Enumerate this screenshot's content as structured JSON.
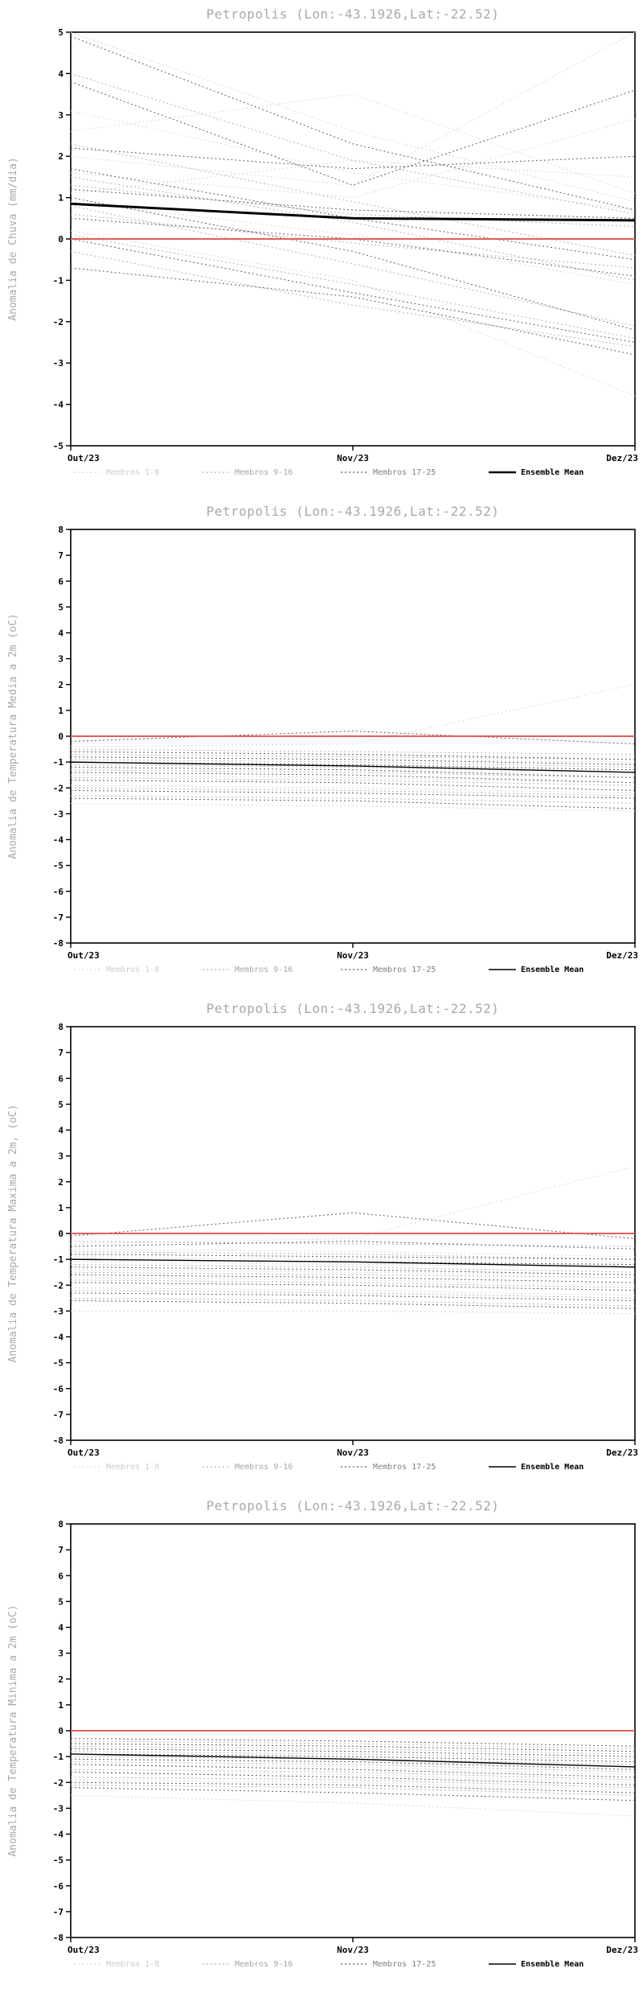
{
  "style": {
    "title_color": "#a9a9a9",
    "axis_label_color": "#a9a9a9",
    "tick_label_color": "#000000",
    "frame_color": "#000000",
    "zero_line_color": "#e0605c",
    "group_colors": [
      "#d8d8d8",
      "#b3b3b3",
      "#5f5f5f"
    ],
    "group_text_colors": [
      "#cccccc",
      "#a6a6a6",
      "#808080"
    ],
    "mean_color": "#000000",
    "mean_text_color": "#000000"
  },
  "chart_data": [
    {
      "type": "line",
      "title": "Petropolis (Lon:-43.1926,Lat:-22.52)",
      "ylabel": "Anomalia de Chuva (mm/dia)",
      "x_categories": [
        "Out/23",
        "Nov/23",
        "Dez/23"
      ],
      "ylim": [
        -5,
        5
      ],
      "ytick_step": 1,
      "zero_line": 0,
      "grid": false,
      "legend_position": "bottom",
      "mean_stroke": 3,
      "mean": {
        "name": "Ensemble Mean",
        "values": [
          0.85,
          0.5,
          0.45
        ]
      },
      "groups": [
        {
          "name": "Membros 1-8",
          "series": [
            [
              5.0,
              2.6,
              0.9
            ],
            [
              2.6,
              3.5,
              1.1
            ],
            [
              2.0,
              1.3,
              5.0
            ],
            [
              1.6,
              1.0,
              2.9
            ],
            [
              0.9,
              0.1,
              -1.1
            ],
            [
              3.1,
              1.6,
              0.7
            ],
            [
              1.1,
              1.9,
              1.5
            ],
            [
              0.2,
              -1.0,
              -3.8
            ]
          ]
        },
        {
          "name": "Membros 9-16",
          "series": [
            [
              4.0,
              1.9,
              0.6
            ],
            [
              2.3,
              0.9,
              -0.4
            ],
            [
              1.5,
              0.4,
              -1.0
            ],
            [
              0.8,
              -0.6,
              -2.1
            ],
            [
              0.1,
              -1.1,
              -2.4
            ],
            [
              -0.3,
              -1.6,
              -2.6
            ],
            [
              1.3,
              0.6,
              0.3
            ],
            [
              0.6,
              -0.1,
              -0.7
            ]
          ]
        },
        {
          "name": "Membros 17-25",
          "series": [
            [
              4.9,
              2.3,
              0.7
            ],
            [
              3.8,
              1.3,
              3.6
            ],
            [
              2.2,
              1.7,
              2.0
            ],
            [
              1.7,
              0.5,
              -0.5
            ],
            [
              1.0,
              -0.3,
              -2.2
            ],
            [
              0.0,
              -1.3,
              -2.5
            ],
            [
              -0.7,
              -1.4,
              -2.8
            ],
            [
              1.2,
              0.7,
              0.5
            ],
            [
              0.5,
              0.0,
              -0.9
            ]
          ]
        }
      ]
    },
    {
      "type": "line",
      "title": "Petropolis (Lon:-43.1926,Lat:-22.52)",
      "ylabel": "Anomalia de Temperatura Media a 2m (oC)",
      "x_categories": [
        "Out/23",
        "Nov/23",
        "Dez/23"
      ],
      "ylim": [
        -8,
        8
      ],
      "ytick_step": 1,
      "zero_line": 0,
      "grid": false,
      "legend_position": "bottom",
      "mean_stroke": 1.4,
      "mean": {
        "name": "Ensemble Mean",
        "values": [
          -1.0,
          -1.15,
          -1.4
        ]
      },
      "groups": [
        {
          "name": "Membros 1-8",
          "series": [
            [
              -0.4,
              -0.3,
              2.0
            ],
            [
              -0.6,
              -0.7,
              -0.8
            ],
            [
              -0.8,
              -0.9,
              -1.0
            ],
            [
              -1.0,
              -1.1,
              -1.3
            ],
            [
              -1.2,
              -1.3,
              -1.5
            ],
            [
              -1.5,
              -1.6,
              -1.8
            ],
            [
              -1.9,
              -2.0,
              -2.2
            ],
            [
              -2.6,
              -2.7,
              -2.9
            ]
          ]
        },
        {
          "name": "Membros 9-16",
          "series": [
            [
              -0.5,
              -0.6,
              -0.7
            ],
            [
              -0.7,
              -0.8,
              -0.9
            ],
            [
              -0.9,
              -1.0,
              -1.2
            ],
            [
              -1.1,
              -1.2,
              -1.4
            ],
            [
              -1.3,
              -1.4,
              -1.6
            ],
            [
              -1.6,
              -1.7,
              -1.9
            ],
            [
              -2.0,
              -2.1,
              -2.3
            ],
            [
              -2.3,
              -2.4,
              -2.6
            ]
          ]
        },
        {
          "name": "Membros 17-25",
          "series": [
            [
              -0.2,
              0.2,
              -0.3
            ],
            [
              -0.6,
              -0.7,
              -0.9
            ],
            [
              -0.8,
              -0.9,
              -1.1
            ],
            [
              -1.0,
              -1.1,
              -1.3
            ],
            [
              -1.2,
              -1.3,
              -1.6
            ],
            [
              -1.4,
              -1.5,
              -1.8
            ],
            [
              -1.7,
              -1.8,
              -2.1
            ],
            [
              -2.1,
              -2.2,
              -2.4
            ],
            [
              -2.4,
              -2.5,
              -2.8
            ]
          ]
        }
      ]
    },
    {
      "type": "line",
      "title": "Petropolis (Lon:-43.1926,Lat:-22.52)",
      "ylabel": "Anomalia de Temperatura Maxima a 2m, (oC)",
      "x_categories": [
        "Out/23",
        "Nov/23",
        "Dez/23"
      ],
      "ylim": [
        -8,
        8
      ],
      "ytick_step": 1,
      "zero_line": 0,
      "grid": false,
      "legend_position": "bottom",
      "mean_stroke": 1.4,
      "mean": {
        "name": "Ensemble Mean",
        "values": [
          -1.0,
          -1.1,
          -1.3
        ]
      },
      "groups": [
        {
          "name": "Membros 1-8",
          "series": [
            [
              -0.4,
              -0.2,
              2.6
            ],
            [
              -0.6,
              -0.7,
              -0.9
            ],
            [
              -0.9,
              -1.0,
              -1.1
            ],
            [
              -1.1,
              -1.2,
              -1.3
            ],
            [
              -1.4,
              -1.5,
              -1.6
            ],
            [
              -1.7,
              -1.8,
              -2.0
            ],
            [
              -2.1,
              -2.2,
              -2.4
            ],
            [
              -3.0,
              -3.0,
              -3.1
            ]
          ]
        },
        {
          "name": "Membros 9-16",
          "series": [
            [
              -0.3,
              -0.4,
              -0.5
            ],
            [
              -0.7,
              -0.8,
              -1.0
            ],
            [
              -1.0,
              -1.1,
              -1.2
            ],
            [
              -1.2,
              -1.3,
              -1.5
            ],
            [
              -1.5,
              -1.6,
              -1.7
            ],
            [
              -1.8,
              -1.9,
              -2.1
            ],
            [
              -2.2,
              -2.3,
              -2.5
            ],
            [
              -2.5,
              -2.6,
              -2.8
            ]
          ]
        },
        {
          "name": "Membros 17-25",
          "series": [
            [
              -0.1,
              0.8,
              -0.2
            ],
            [
              -0.5,
              -0.3,
              -0.6
            ],
            [
              -0.8,
              -0.9,
              -1.0
            ],
            [
              -1.0,
              -1.1,
              -1.2
            ],
            [
              -1.3,
              -1.4,
              -1.6
            ],
            [
              -1.6,
              -1.7,
              -1.9
            ],
            [
              -1.9,
              -2.0,
              -2.2
            ],
            [
              -2.3,
              -2.4,
              -2.6
            ],
            [
              -2.6,
              -2.7,
              -2.9
            ]
          ]
        }
      ]
    },
    {
      "type": "line",
      "title": "Petropolis (Lon:-43.1926,Lat:-22.52)",
      "ylabel": "Anomalia de Temperatura Minima a 2m (oC)",
      "x_categories": [
        "Out/23",
        "Nov/23",
        "Dez/23"
      ],
      "ylim": [
        -8,
        8
      ],
      "ytick_step": 1,
      "zero_line": 0,
      "grid": false,
      "legend_position": "bottom",
      "mean_stroke": 1.4,
      "mean": {
        "name": "Ensemble Mean",
        "values": [
          -0.9,
          -1.1,
          -1.4
        ]
      },
      "groups": [
        {
          "name": "Membros 1-8",
          "series": [
            [
              -0.5,
              -0.6,
              -0.8
            ],
            [
              -0.7,
              -0.8,
              -1.0
            ],
            [
              -0.9,
              -1.0,
              -1.2
            ],
            [
              -1.1,
              -1.2,
              -1.4
            ],
            [
              -1.3,
              -1.4,
              -1.7
            ],
            [
              -1.6,
              -1.7,
              -2.0
            ],
            [
              -1.9,
              -2.0,
              -2.3
            ],
            [
              -2.5,
              -2.8,
              -3.3
            ]
          ]
        },
        {
          "name": "Membros 9-16",
          "series": [
            [
              -0.4,
              -0.5,
              -0.7
            ],
            [
              -0.6,
              -0.7,
              -0.9
            ],
            [
              -0.8,
              -0.9,
              -1.1
            ],
            [
              -1.0,
              -1.1,
              -1.3
            ],
            [
              -1.2,
              -1.3,
              -1.6
            ],
            [
              -1.5,
              -1.6,
              -1.9
            ],
            [
              -1.8,
              -1.9,
              -2.2
            ],
            [
              -2.1,
              -2.2,
              -2.5
            ]
          ]
        },
        {
          "name": "Membros 17-25",
          "series": [
            [
              -0.3,
              -0.4,
              -0.6
            ],
            [
              -0.5,
              -0.6,
              -0.8
            ],
            [
              -0.7,
              -0.8,
              -1.0
            ],
            [
              -0.9,
              -1.0,
              -1.2
            ],
            [
              -1.1,
              -1.2,
              -1.5
            ],
            [
              -1.3,
              -1.5,
              -1.8
            ],
            [
              -1.6,
              -1.8,
              -2.1
            ],
            [
              -2.0,
              -2.1,
              -2.4
            ],
            [
              -2.2,
              -2.4,
              -2.7
            ]
          ]
        }
      ]
    }
  ]
}
